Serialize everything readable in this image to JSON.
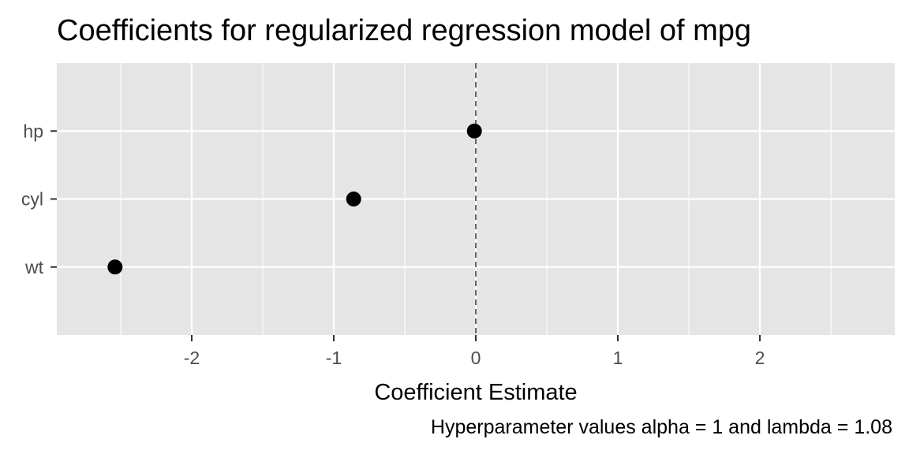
{
  "chart_data": {
    "type": "scatter",
    "title": "Coefficients for regularized regression model of mpg",
    "xlabel": "Coefficient Estimate",
    "ylabel": "",
    "caption": "Hyperparameter values alpha = 1 and lambda = 1.08",
    "xlim": [
      -2.95,
      2.95
    ],
    "x_ticks": [
      -2,
      -1,
      0,
      1,
      2
    ],
    "x_tick_labels": [
      "-2",
      "-1",
      "0",
      "1",
      "2"
    ],
    "categories": [
      "wt",
      "cyl",
      "hp"
    ],
    "values": [
      -2.54,
      -0.86,
      -0.01
    ],
    "reference_line": {
      "x": 0,
      "style": "dashed"
    },
    "grid": true,
    "legend": "none",
    "colors": {
      "panel": "#e5e5e5",
      "grid": "#ffffff",
      "point": "#000000",
      "refline": "#666666",
      "tick_text": "#4d4d4d"
    }
  }
}
